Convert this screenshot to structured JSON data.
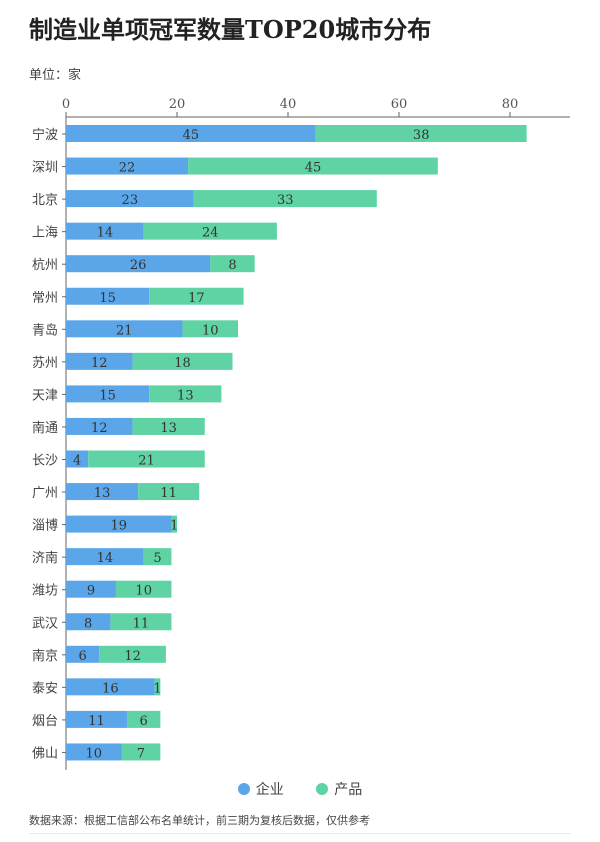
{
  "title": "制造业单项冠军数量TOP20城市分布",
  "unit": "单位：家",
  "source": "数据来源：根据工信部公布名单统计，前三期为复核后数据，仅供参考",
  "chart_data": {
    "type": "bar",
    "orientation": "horizontal",
    "stacked": true,
    "categories": [
      "宁波",
      "深圳",
      "北京",
      "上海",
      "杭州",
      "常州",
      "青岛",
      "苏州",
      "天津",
      "南通",
      "长沙",
      "广州",
      "淄博",
      "济南",
      "潍坊",
      "武汉",
      "南京",
      "泰安",
      "烟台",
      "佛山"
    ],
    "series": [
      {
        "name": "企业",
        "color": "#5aa6e8",
        "values": [
          45,
          22,
          23,
          14,
          26,
          15,
          21,
          12,
          15,
          12,
          4,
          13,
          19,
          14,
          9,
          8,
          6,
          16,
          11,
          10
        ]
      },
      {
        "name": "产品",
        "color": "#5fd3a3",
        "values": [
          38,
          45,
          33,
          24,
          8,
          17,
          10,
          18,
          13,
          13,
          21,
          11,
          1,
          5,
          10,
          11,
          12,
          1,
          6,
          7
        ]
      }
    ],
    "xticks": [
      0,
      20,
      40,
      60,
      80
    ],
    "xlim": [
      0,
      92
    ],
    "legend": "bottom",
    "grid": false
  }
}
